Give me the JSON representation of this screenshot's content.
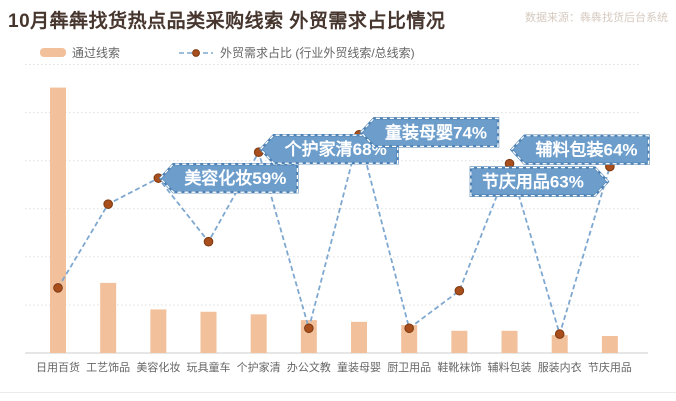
{
  "header": {
    "title": "10月犇犇找货热点品类采购线索 外贸需求占比情况",
    "source": "数据来源：犇犇找货后台系统"
  },
  "legend": {
    "items": [
      {
        "label": "通过线索",
        "type": "bar"
      },
      {
        "label": "外贸需求占比 (行业外贸线索/总线索)",
        "type": "line"
      }
    ]
  },
  "colors": {
    "bar": "#f2c09a",
    "line": "#7fa8d0",
    "dot_fill": "#a94f1d",
    "dot_stroke": "#7c3911",
    "banner_fill": "#6c9dcb",
    "banner_rim": "#4e82b4",
    "banner_border": "#ffffff",
    "banner_text": "#ffffff",
    "grid": "#dddddd",
    "axis": "#cccccc",
    "axis_label": "#666666",
    "title_text": "#46362e",
    "source_text": "#d6cabf",
    "legend_text": "#666666"
  },
  "chart_data": {
    "type": "combo-bar-line",
    "categories": [
      "日用百货",
      "工艺饰品",
      "美容化妆",
      "玩具童车",
      "个护家清",
      "办公文教",
      "童装母婴",
      "厨卫用品",
      "鞋靴袜饰",
      "辅料包装",
      "服装内衣",
      "节庆用品"
    ],
    "series": [
      {
        "name": "通过线索",
        "type": "bar",
        "values_relative_pct_of_plot_height": [
          92,
          24.3,
          15.1,
          14.3,
          13.4,
          11.4,
          10.8,
          9.7,
          7.7,
          7.7,
          6.2,
          5.9
        ]
      },
      {
        "name": "外贸需求占比",
        "type": "line",
        "unit": "%",
        "values_pct": [
          21,
          50,
          59,
          37,
          68,
          7,
          74,
          7,
          20,
          64,
          5,
          63
        ],
        "labeled_points": {
          "美容化妆": 59,
          "个护家清": 68,
          "童装母婴": 74,
          "辅料包装": 64,
          "节庆用品": 63
        },
        "note": "values for unlabeled points estimated from plot positions"
      }
    ],
    "callouts": [
      {
        "category_index": 2,
        "label": "美容化妆59%",
        "direction": "left"
      },
      {
        "category_index": 4,
        "label": "个护家清68%",
        "direction": "left"
      },
      {
        "category_index": 6,
        "label": "童装母婴74%",
        "direction": "left"
      },
      {
        "category_index": 9,
        "label": "辅料包装64%",
        "direction": "left"
      },
      {
        "category_index": 11,
        "label": "节庆用品63%",
        "direction": "right"
      }
    ],
    "line_ylim": [
      0,
      100
    ],
    "gridlines": "6 dotted horizontal lines + solid baseline",
    "legend_position": "top-left"
  }
}
